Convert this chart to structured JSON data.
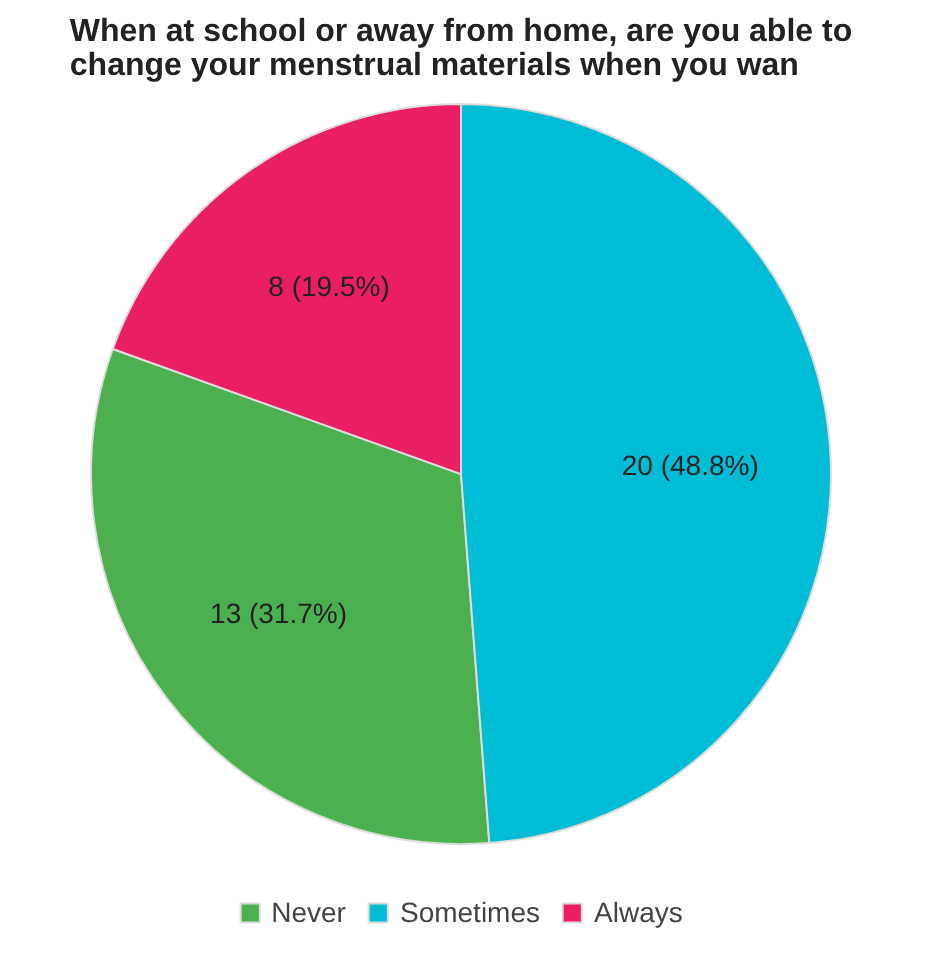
{
  "chart_data": {
    "type": "pie",
    "title": "When at school or away from home, are you able to change your menstrual materials when you wan",
    "categories": [
      "Never",
      "Sometimes",
      "Always"
    ],
    "values": [
      13,
      20,
      8
    ],
    "colors": [
      "#4caf50",
      "#00bcd4",
      "#e91e63"
    ],
    "value_labels": [
      "13 (31.7%)",
      "20 (48.8%)",
      "8 (19.5%)"
    ],
    "legend": "bottom"
  }
}
